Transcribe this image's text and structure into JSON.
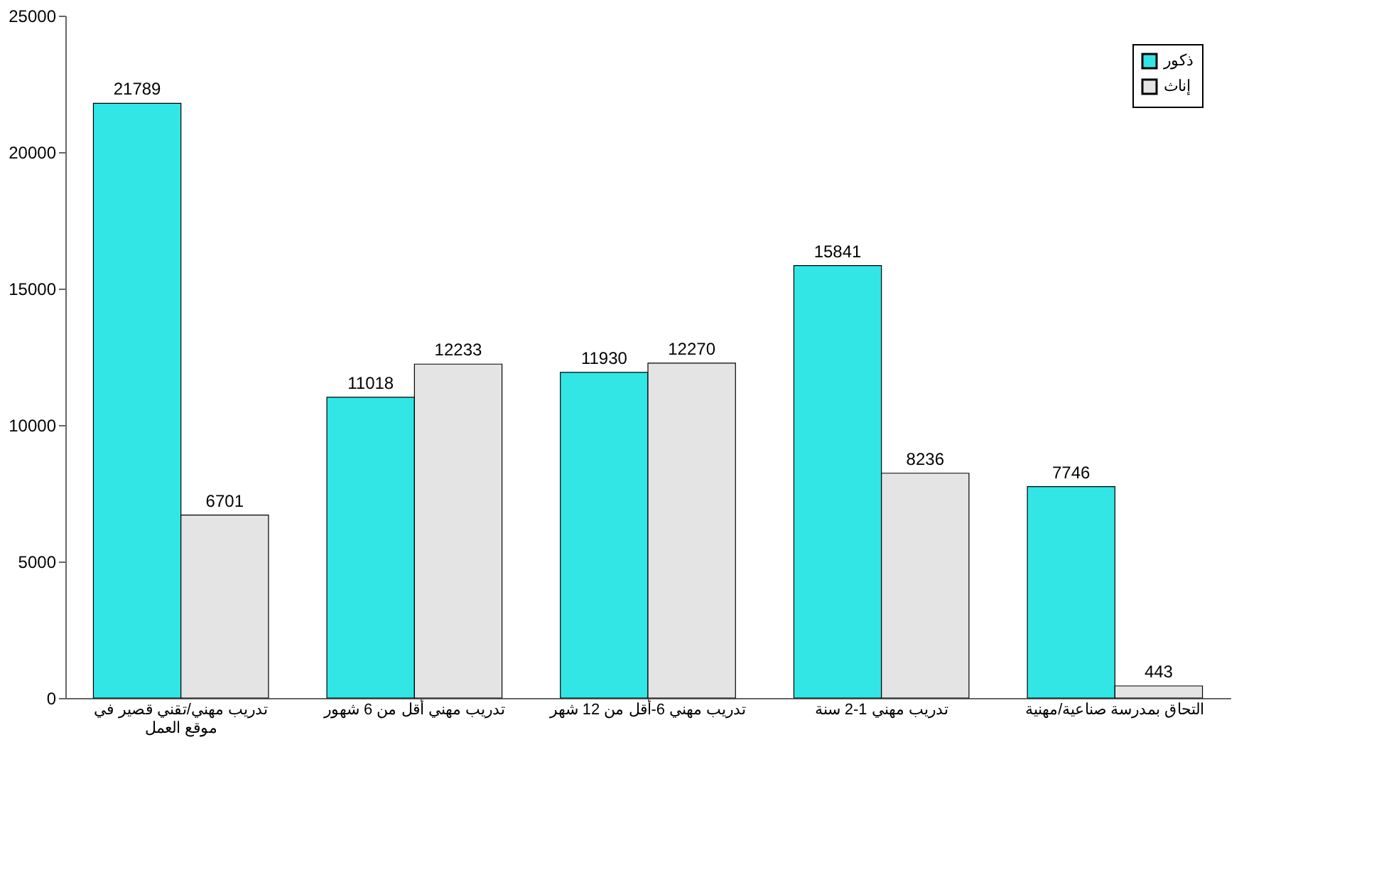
{
  "chart_data": {
    "type": "bar",
    "categories": [
      "تدريب مهني/تقني قصير في موقع العمل",
      "تدريب مهني أقل من 6 شهور",
      "تدريب مهني 6-أقل من 12 شهر",
      "تدريب مهني 1-2 سنة",
      "التحاق بمدرسة صناعية/مهنية"
    ],
    "series": [
      {
        "name": "ذكور",
        "color": "#33e6e6",
        "values": [
          21789,
          11018,
          11930,
          15841,
          7746
        ]
      },
      {
        "name": "إناث",
        "color": "#e4e4e4",
        "values": [
          6701,
          12233,
          12270,
          8236,
          443
        ]
      }
    ],
    "ylim": [
      0,
      25000
    ],
    "yticks": [
      0,
      5000,
      10000,
      15000,
      20000,
      25000
    ],
    "grid": false,
    "legend": "top right",
    "data_labels": true
  }
}
